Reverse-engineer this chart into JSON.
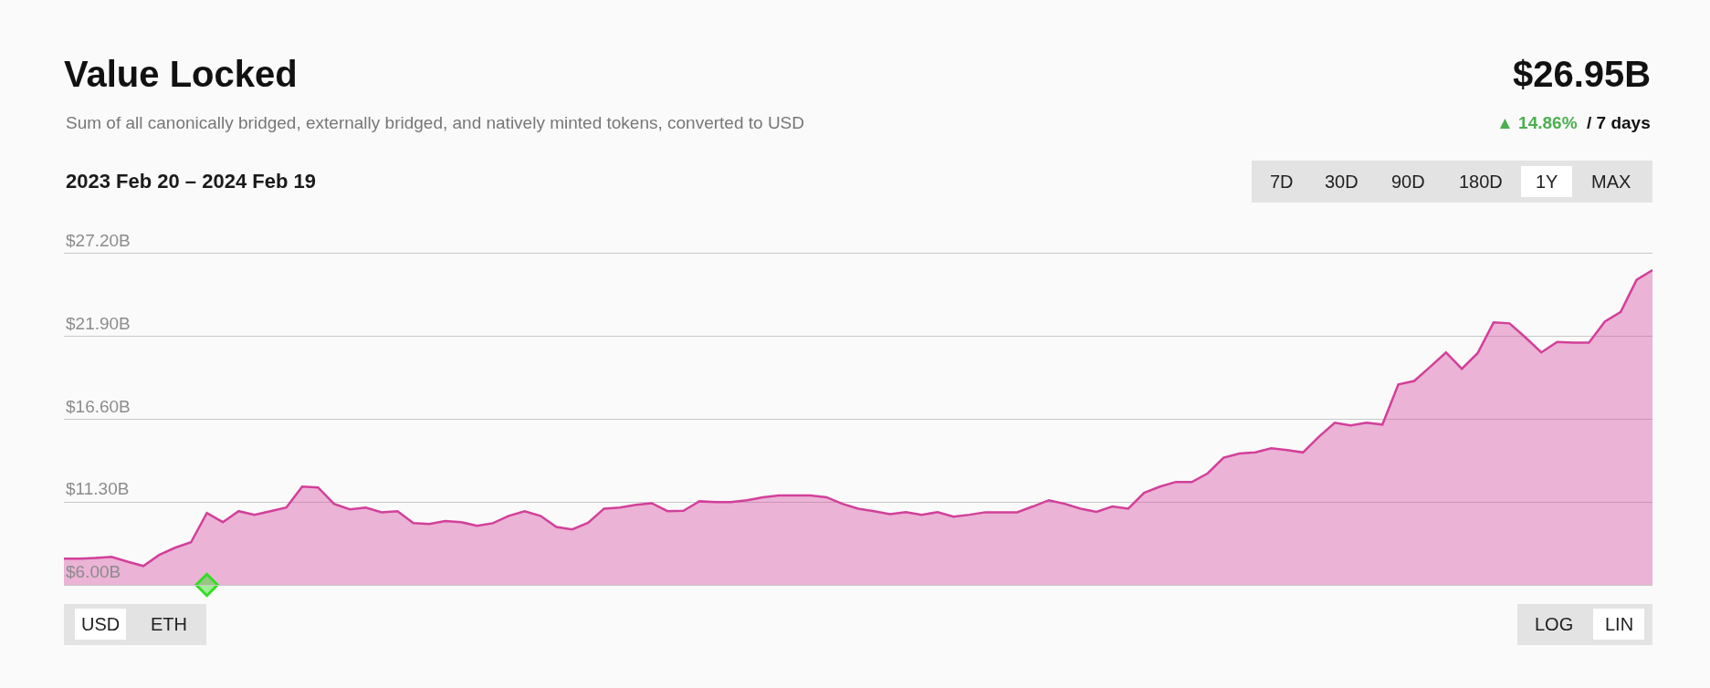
{
  "chart_data": {
    "type": "area",
    "title": "Value Locked",
    "subtitle": "Sum of all canonically bridged, externally bridged, and natively minted tokens, converted to USD",
    "annotations": [
      "2023 Feb 20 – 2024 Feb 19",
      "7D",
      "30D",
      "90D",
      "180D",
      "1Y",
      "MAX",
      "$26.95B",
      "▲ 14.86%",
      "/ 7 days",
      "USD",
      "ETH",
      "LOG",
      "LIN"
    ],
    "categories": [
      null,
      null,
      null,
      null,
      null,
      null,
      null,
      null,
      null,
      null,
      null,
      null,
      null,
      null,
      null,
      null,
      null,
      null,
      null,
      null,
      null,
      null,
      null,
      null,
      null,
      null,
      null,
      null,
      null,
      null,
      null,
      null,
      null,
      null,
      null,
      null,
      null,
      null,
      null,
      null,
      null,
      null,
      null,
      null,
      null,
      null,
      null,
      null,
      null,
      null,
      null,
      null,
      null,
      null,
      null,
      null,
      null,
      null,
      null,
      null,
      null,
      null,
      null,
      null,
      null,
      null,
      null,
      null,
      null,
      null,
      null,
      null,
      null,
      null,
      null,
      null,
      null,
      null,
      null,
      null,
      null,
      null,
      null,
      null,
      null,
      null,
      null,
      null,
      null,
      null,
      null,
      null,
      null,
      null,
      null,
      null,
      null,
      null,
      null,
      null,
      null
    ],
    "series": [
      {
        "color": "#d2409a",
        "values": [
          7.68,
          7.68,
          7.73,
          7.8,
          7.49,
          7.21,
          7.92,
          8.38,
          8.73,
          10.6,
          10.02,
          10.72,
          10.49,
          10.72,
          10.95,
          12.29,
          12.24,
          11.19,
          10.84,
          10.95,
          10.65,
          10.72,
          9.95,
          9.9,
          10.09,
          10.02,
          9.78,
          9.95,
          10.42,
          10.72,
          10.42,
          9.71,
          9.55,
          9.97,
          10.88,
          10.95,
          11.12,
          11.23,
          10.72,
          10.74,
          11.35,
          11.3,
          11.3,
          11.42,
          11.61,
          11.72,
          11.72,
          11.72,
          11.61,
          11.19,
          10.88,
          10.72,
          10.53,
          10.65,
          10.49,
          10.65,
          10.37,
          10.49,
          10.65,
          10.65,
          10.65,
          11.02,
          11.42,
          11.19,
          10.88,
          10.67,
          11.02,
          10.88,
          11.89,
          12.29,
          12.59,
          12.58,
          13.14,
          14.14,
          14.41,
          14.48,
          14.75,
          14.63,
          14.48,
          15.48,
          16.38,
          16.2,
          16.38,
          16.26,
          18.83,
          19.05,
          19.95,
          20.88,
          19.83,
          20.84,
          22.8,
          22.74,
          21.84,
          20.88,
          21.55,
          21.51,
          21.51,
          22.85,
          23.47,
          25.53,
          26.15
        ]
      },
      {
        "type": "scatter",
        "marker": "diamond",
        "color": "#33dd22",
        "values": [
          null,
          null,
          null,
          null,
          null,
          null,
          null,
          null,
          null,
          6.0,
          null,
          null,
          null,
          null,
          null,
          null,
          null,
          null,
          null,
          null,
          null,
          null,
          null,
          null,
          null,
          null,
          null,
          null,
          null,
          null,
          null,
          null,
          null,
          null,
          null,
          null,
          null,
          null,
          null,
          null,
          null,
          null,
          null,
          null,
          null,
          null,
          null,
          null,
          null,
          null,
          null,
          null,
          null,
          null,
          null,
          null,
          null,
          null,
          null,
          null,
          null,
          null,
          null,
          null,
          null,
          null,
          null,
          null,
          null,
          null,
          null,
          null,
          null,
          null,
          null,
          null,
          null,
          null,
          null,
          null,
          null,
          null,
          null,
          null,
          null,
          null,
          null,
          null,
          null,
          null,
          null,
          null,
          null,
          null,
          null,
          null,
          null,
          null,
          null,
          null,
          null
        ]
      }
    ],
    "ylim": [
      6.0,
      27.2
    ],
    "yticks": [
      {
        "value": 6.0,
        "label": "$6.00B"
      },
      {
        "value": 11.3,
        "label": "$11.30B"
      },
      {
        "value": 16.6,
        "label": "$16.60B"
      },
      {
        "value": 21.9,
        "label": "$21.90B"
      },
      {
        "value": 27.2,
        "label": "$27.20B"
      }
    ],
    "grid": "y",
    "marker": "none",
    "tick_labels": "y"
  }
}
